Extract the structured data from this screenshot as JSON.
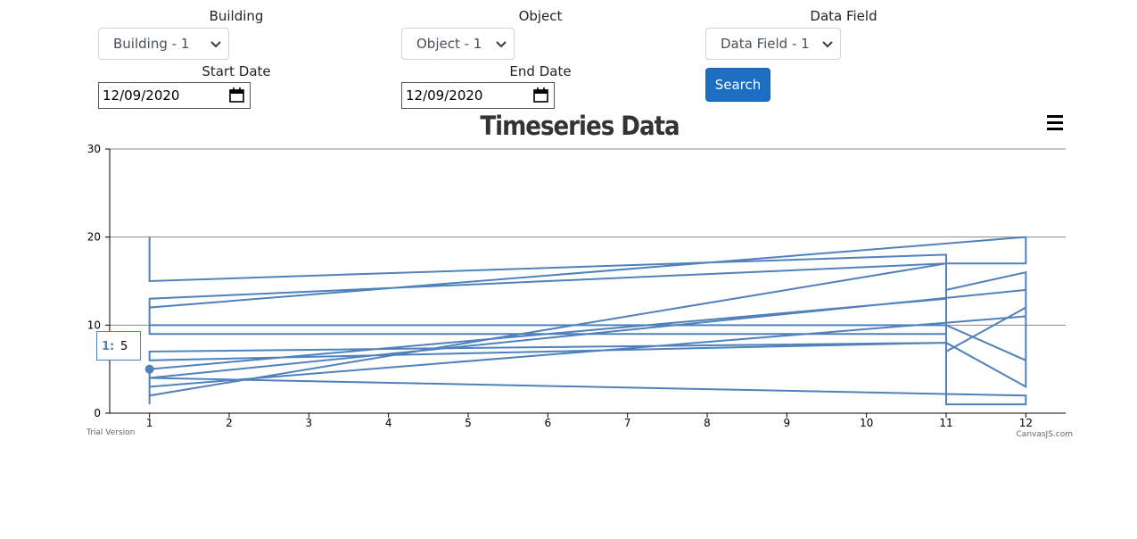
{
  "form": {
    "building": {
      "label": "Building",
      "value": "Building - 1"
    },
    "object": {
      "label": "Object",
      "value": "Object - 1"
    },
    "data_field": {
      "label": "Data Field",
      "value": "Data Field - 1"
    },
    "start_date": {
      "label": "Start Date",
      "value": "12/09/2020"
    },
    "end_date": {
      "label": "End Date",
      "value": "12/09/2020"
    },
    "search": "Search"
  },
  "chart_data": {
    "type": "line",
    "title": "Timeseries Data",
    "x": [
      1,
      1,
      11,
      11,
      12,
      12,
      11,
      1,
      1,
      11,
      12,
      12,
      1,
      1,
      11,
      11,
      12,
      12,
      11,
      1,
      1,
      11,
      11,
      1,
      1,
      12,
      12,
      1,
      1,
      11,
      11,
      12,
      12,
      1,
      1
    ],
    "series": [
      {
        "color": "#4f81bc",
        "values": [
          20,
          15,
          18,
          14,
          16,
          6,
          10,
          10,
          13,
          17,
          17,
          20,
          12,
          9,
          9,
          7,
          12,
          3,
          8,
          6,
          7,
          8,
          13,
          5,
          4,
          14,
          11,
          3,
          2,
          17,
          1,
          1,
          2,
          4,
          1
        ]
      }
    ],
    "xlim": [
      0.5,
      12.5
    ],
    "xticks": [
      1,
      2,
      3,
      4,
      5,
      6,
      7,
      8,
      9,
      10,
      11,
      12
    ],
    "ylim": [
      0,
      30
    ],
    "yticks": [
      0,
      10,
      20,
      30
    ],
    "grid": true,
    "tooltip": {
      "label": "1:",
      "value": 5
    },
    "credits": {
      "left": "Trial Version",
      "right": "CanvasJS.com"
    }
  }
}
